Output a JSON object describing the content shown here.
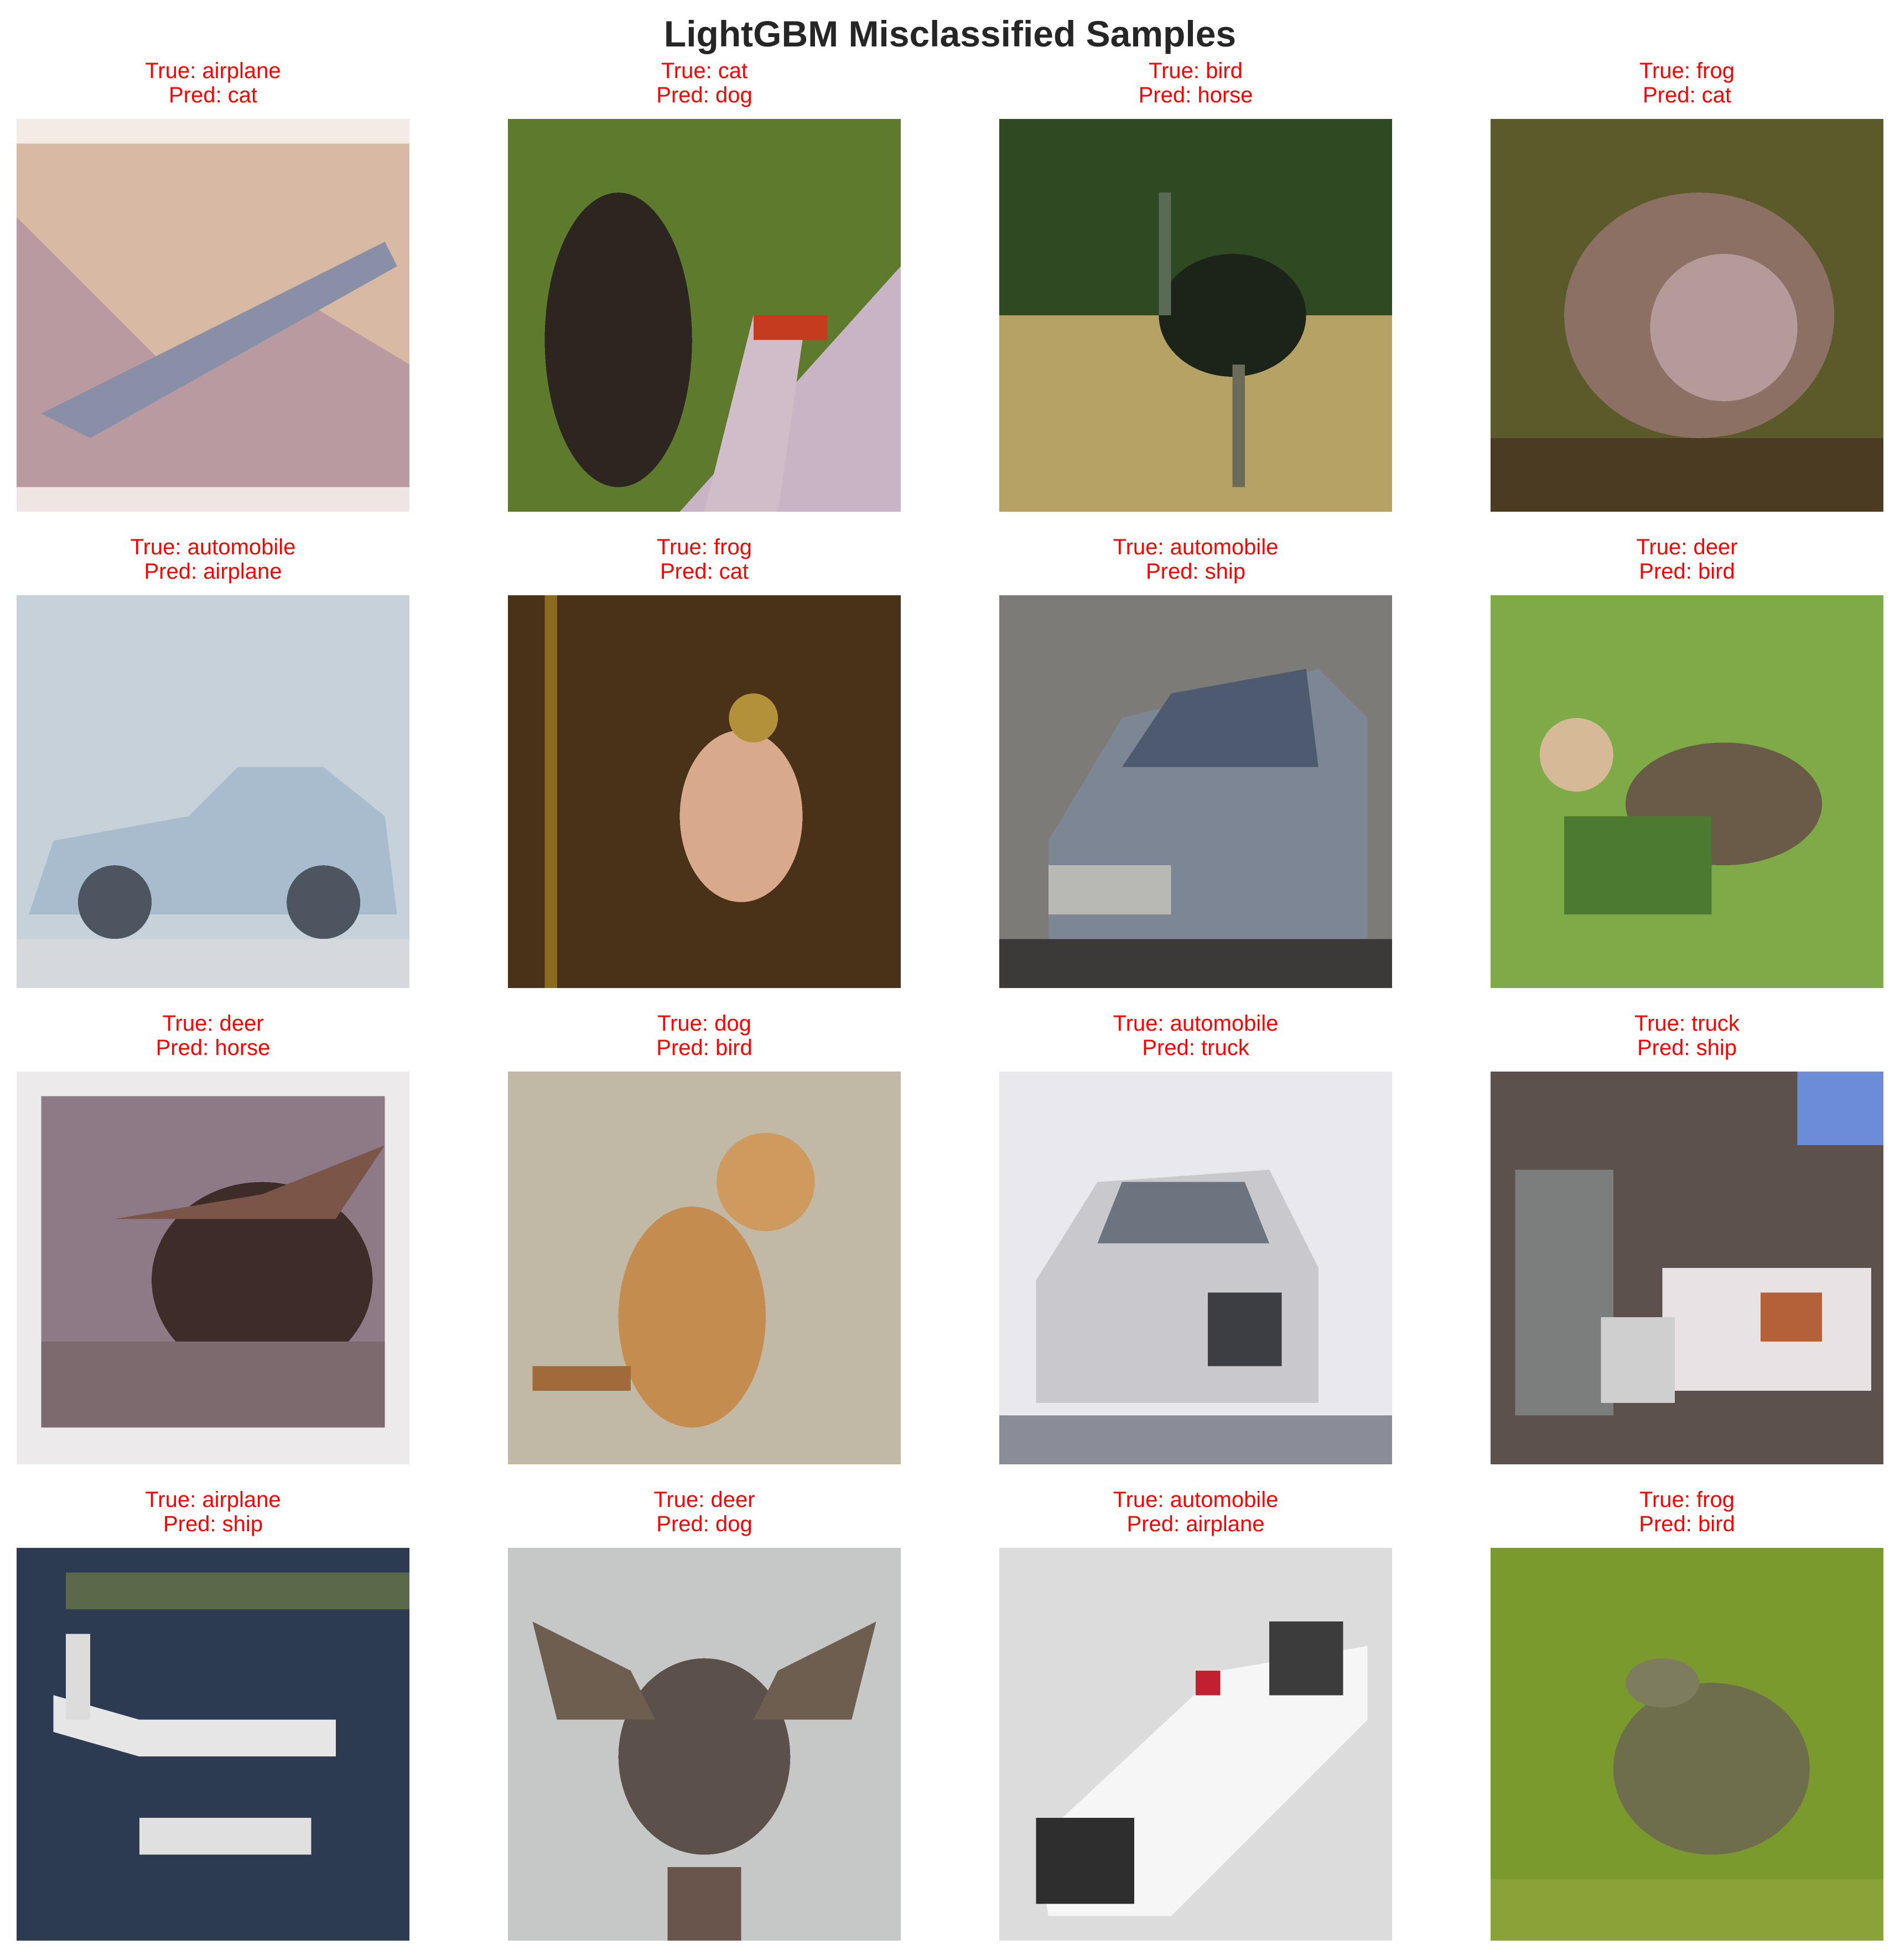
{
  "title": "LightGBM Misclassified Samples",
  "colors": {
    "caption": "#ff0000",
    "title": "#262626",
    "background": "#ffffff"
  },
  "samples": [
    {
      "true_label": "True: airplane",
      "pred_label": "Pred: cat",
      "image": "airplane-over-mountain-photo"
    },
    {
      "true_label": "True: cat",
      "pred_label": "Pred: dog",
      "image": "cat-beside-car-photo"
    },
    {
      "true_label": "True: bird",
      "pred_label": "Pred: horse",
      "image": "ostrich-on-grass-photo"
    },
    {
      "true_label": "True: frog",
      "pred_label": "Pred: cat",
      "image": "frog-in-foliage-photo"
    },
    {
      "true_label": "True: automobile",
      "pred_label": "Pred: airplane",
      "image": "silver-sports-car-photo"
    },
    {
      "true_label": "True: frog",
      "pred_label": "Pred: cat",
      "image": "frog-in-dark-reeds-photo"
    },
    {
      "true_label": "True: automobile",
      "pred_label": "Pred: ship",
      "image": "grey-sedan-photo"
    },
    {
      "true_label": "True: deer",
      "pred_label": "Pred: bird",
      "image": "deer-grazing-photo"
    },
    {
      "true_label": "True: deer",
      "pred_label": "Pred: horse",
      "image": "moose-portrait-photo"
    },
    {
      "true_label": "True: dog",
      "pred_label": "Pred: bird",
      "image": "sitting-dog-photo"
    },
    {
      "true_label": "True: automobile",
      "pred_label": "Pred: truck",
      "image": "white-car-front-photo"
    },
    {
      "true_label": "True: truck",
      "pred_label": "Pred: ship",
      "image": "delivery-truck-photo"
    },
    {
      "true_label": "True: airplane",
      "pred_label": "Pred: ship",
      "image": "seaplane-photo"
    },
    {
      "true_label": "True: deer",
      "pred_label": "Pred: dog",
      "image": "antlered-deer-photo"
    },
    {
      "true_label": "True: automobile",
      "pred_label": "Pred: airplane",
      "image": "toy-police-car-photo"
    },
    {
      "true_label": "True: frog",
      "pred_label": "Pred: bird",
      "image": "frog-in-grass-photo"
    }
  ]
}
